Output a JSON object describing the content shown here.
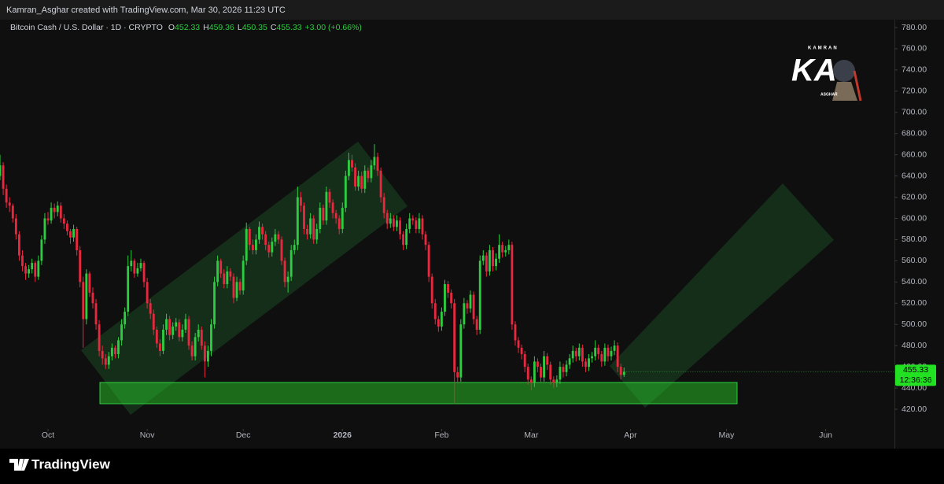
{
  "top_bar": "Kamran_Asghar created with TradingView.com, Mar 30, 2026 11:23 UTC",
  "footer_brand": "TradingView",
  "watermark": {
    "top": "KAMRAN",
    "mark": "KA",
    "bottom": "ASGHAR"
  },
  "chart_data": {
    "type": "candlestick",
    "title": "Bitcoin Cash / U.S. Dollar · 1D · CRYPTO",
    "ohlc_legend": [
      {
        "label": "O",
        "value": 452.33
      },
      {
        "label": "H",
        "value": 459.36
      },
      {
        "label": "L",
        "value": 450.35
      },
      {
        "label": "C",
        "value": 455.33
      }
    ],
    "change": "+3.00 (+0.66%)",
    "up_color": "#2ecc40",
    "down_color": "#e8283f",
    "grid": false,
    "xlim": [
      0,
      279
    ],
    "xticks": [
      {
        "value": 15,
        "label": "Oct"
      },
      {
        "value": 46,
        "label": "Nov"
      },
      {
        "value": 76,
        "label": "Dec"
      },
      {
        "value": 107,
        "label": "2026"
      },
      {
        "value": 138,
        "label": "Feb"
      },
      {
        "value": 166,
        "label": "Mar"
      },
      {
        "value": 197,
        "label": "Apr"
      },
      {
        "value": 227,
        "label": "May"
      },
      {
        "value": 258,
        "label": "Jun"
      }
    ],
    "ylim": [
      420,
      780
    ],
    "yticks": [
      {
        "value": 420,
        "label": "420.00"
      },
      {
        "value": 440,
        "label": "440.00"
      },
      {
        "value": 460,
        "label": "460.00"
      },
      {
        "value": 480,
        "label": "480.00"
      },
      {
        "value": 500,
        "label": "500.00"
      },
      {
        "value": 520,
        "label": "520.00"
      },
      {
        "value": 540,
        "label": "540.00"
      },
      {
        "value": 560,
        "label": "560.00"
      },
      {
        "value": 580,
        "label": "580.00"
      },
      {
        "value": 600,
        "label": "600.00"
      },
      {
        "value": 620,
        "label": "620.00"
      },
      {
        "value": 640,
        "label": "640.00"
      },
      {
        "value": 660,
        "label": "660.00"
      },
      {
        "value": 680,
        "label": "680.00"
      },
      {
        "value": 700,
        "label": "700.00"
      },
      {
        "value": 720,
        "label": "720.00"
      },
      {
        "value": 740,
        "label": "740.00"
      },
      {
        "value": 760,
        "label": "760.00"
      },
      {
        "value": 780,
        "label": "780.00"
      }
    ],
    "last_price": 455.33,
    "countdown": "12:36:36",
    "candles": [
      [
        640,
        660,
        636,
        650
      ],
      [
        650,
        653,
        622,
        628
      ],
      [
        628,
        632,
        610,
        615
      ],
      [
        615,
        620,
        606,
        612
      ],
      [
        612,
        614,
        596,
        600
      ],
      [
        600,
        604,
        580,
        585
      ],
      [
        585,
        588,
        560,
        565
      ],
      [
        565,
        570,
        550,
        555
      ],
      [
        555,
        558,
        542,
        548
      ],
      [
        548,
        556,
        544,
        552
      ],
      [
        552,
        562,
        548,
        558
      ],
      [
        558,
        560,
        540,
        545
      ],
      [
        545,
        565,
        542,
        560
      ],
      [
        560,
        584,
        556,
        580
      ],
      [
        580,
        605,
        576,
        600
      ],
      [
        600,
        606,
        594,
        598
      ],
      [
        598,
        615,
        595,
        610
      ],
      [
        610,
        614,
        600,
        606
      ],
      [
        606,
        616,
        602,
        612
      ],
      [
        612,
        615,
        596,
        600
      ],
      [
        600,
        604,
        590,
        595
      ],
      [
        595,
        598,
        584,
        588
      ],
      [
        588,
        590,
        576,
        582
      ],
      [
        582,
        594,
        578,
        590
      ],
      [
        590,
        592,
        565,
        570
      ],
      [
        570,
        574,
        535,
        540
      ],
      [
        540,
        545,
        478,
        505
      ],
      [
        505,
        552,
        500,
        548
      ],
      [
        548,
        550,
        526,
        530
      ],
      [
        530,
        535,
        515,
        520
      ],
      [
        520,
        524,
        495,
        500
      ],
      [
        500,
        504,
        470,
        475
      ],
      [
        475,
        480,
        462,
        468
      ],
      [
        468,
        472,
        458,
        462
      ],
      [
        462,
        474,
        458,
        470
      ],
      [
        470,
        482,
        466,
        478
      ],
      [
        478,
        480,
        468,
        472
      ],
      [
        472,
        488,
        468,
        485
      ],
      [
        485,
        505,
        480,
        500
      ],
      [
        500,
        516,
        496,
        512
      ],
      [
        512,
        565,
        508,
        555
      ],
      [
        555,
        570,
        550,
        560
      ],
      [
        560,
        562,
        544,
        548
      ],
      [
        548,
        558,
        545,
        553
      ],
      [
        553,
        562,
        550,
        558
      ],
      [
        558,
        560,
        535,
        540
      ],
      [
        540,
        544,
        515,
        520
      ],
      [
        520,
        524,
        505,
        510
      ],
      [
        510,
        514,
        490,
        495
      ],
      [
        495,
        498,
        478,
        482
      ],
      [
        482,
        486,
        470,
        475
      ],
      [
        475,
        500,
        472,
        495
      ],
      [
        495,
        510,
        490,
        505
      ],
      [
        505,
        508,
        485,
        490
      ],
      [
        490,
        502,
        486,
        498
      ],
      [
        498,
        506,
        494,
        502
      ],
      [
        502,
        505,
        484,
        488
      ],
      [
        488,
        500,
        484,
        495
      ],
      [
        495,
        510,
        492,
        505
      ],
      [
        505,
        508,
        476,
        480
      ],
      [
        480,
        484,
        466,
        470
      ],
      [
        470,
        492,
        466,
        488
      ],
      [
        488,
        500,
        484,
        495
      ],
      [
        495,
        498,
        476,
        480
      ],
      [
        480,
        484,
        450,
        465
      ],
      [
        465,
        480,
        460,
        475
      ],
      [
        475,
        505,
        470,
        500
      ],
      [
        500,
        545,
        496,
        540
      ],
      [
        540,
        565,
        536,
        560
      ],
      [
        560,
        562,
        544,
        548
      ],
      [
        548,
        552,
        534,
        538
      ],
      [
        538,
        555,
        534,
        550
      ],
      [
        550,
        553,
        541,
        545
      ],
      [
        545,
        548,
        520,
        525
      ],
      [
        525,
        545,
        522,
        540
      ],
      [
        540,
        543,
        528,
        532
      ],
      [
        532,
        565,
        528,
        560
      ],
      [
        560,
        596,
        556,
        590
      ],
      [
        590,
        592,
        570,
        575
      ],
      [
        575,
        580,
        566,
        570
      ],
      [
        570,
        585,
        566,
        580
      ],
      [
        580,
        597,
        576,
        592
      ],
      [
        592,
        595,
        580,
        585
      ],
      [
        585,
        588,
        570,
        575
      ],
      [
        575,
        578,
        563,
        568
      ],
      [
        568,
        582,
        564,
        578
      ],
      [
        578,
        590,
        574,
        585
      ],
      [
        585,
        588,
        576,
        580
      ],
      [
        580,
        583,
        556,
        560
      ],
      [
        560,
        563,
        535,
        540
      ],
      [
        540,
        550,
        530,
        545
      ],
      [
        545,
        575,
        541,
        570
      ],
      [
        570,
        580,
        566,
        575
      ],
      [
        575,
        630,
        570,
        620
      ],
      [
        620,
        625,
        606,
        612
      ],
      [
        612,
        615,
        585,
        590
      ],
      [
        590,
        594,
        580,
        585
      ],
      [
        585,
        605,
        581,
        600
      ],
      [
        600,
        603,
        576,
        580
      ],
      [
        580,
        595,
        576,
        590
      ],
      [
        590,
        615,
        586,
        610
      ],
      [
        610,
        613,
        594,
        598
      ],
      [
        598,
        630,
        594,
        625
      ],
      [
        625,
        628,
        610,
        615
      ],
      [
        615,
        618,
        600,
        605
      ],
      [
        605,
        608,
        595,
        600
      ],
      [
        600,
        603,
        585,
        590
      ],
      [
        590,
        615,
        586,
        610
      ],
      [
        610,
        645,
        606,
        640
      ],
      [
        640,
        662,
        636,
        655
      ],
      [
        655,
        660,
        644,
        648
      ],
      [
        648,
        652,
        626,
        630
      ],
      [
        630,
        645,
        626,
        640
      ],
      [
        640,
        644,
        624,
        628
      ],
      [
        628,
        650,
        624,
        645
      ],
      [
        645,
        648,
        634,
        638
      ],
      [
        638,
        655,
        634,
        650
      ],
      [
        650,
        670,
        646,
        658
      ],
      [
        658,
        662,
        640,
        645
      ],
      [
        645,
        648,
        615,
        620
      ],
      [
        620,
        624,
        600,
        605
      ],
      [
        605,
        608,
        590,
        595
      ],
      [
        595,
        605,
        591,
        600
      ],
      [
        600,
        603,
        588,
        592
      ],
      [
        592,
        603,
        588,
        598
      ],
      [
        598,
        601,
        580,
        585
      ],
      [
        585,
        588,
        570,
        575
      ],
      [
        575,
        595,
        571,
        590
      ],
      [
        590,
        605,
        586,
        600
      ],
      [
        600,
        603,
        594,
        598
      ],
      [
        598,
        601,
        586,
        590
      ],
      [
        590,
        605,
        586,
        600
      ],
      [
        600,
        603,
        580,
        585
      ],
      [
        585,
        588,
        570,
        575
      ],
      [
        575,
        578,
        540,
        545
      ],
      [
        545,
        548,
        515,
        520
      ],
      [
        520,
        524,
        500,
        505
      ],
      [
        505,
        508,
        493,
        498
      ],
      [
        498,
        516,
        494,
        512
      ],
      [
        512,
        542,
        508,
        538
      ],
      [
        538,
        541,
        525,
        530
      ],
      [
        530,
        533,
        515,
        520
      ],
      [
        520,
        524,
        425,
        455
      ],
      [
        455,
        460,
        445,
        450
      ],
      [
        450,
        505,
        446,
        500
      ],
      [
        500,
        525,
        496,
        520
      ],
      [
        520,
        523,
        510,
        515
      ],
      [
        515,
        532,
        511,
        528
      ],
      [
        528,
        531,
        500,
        505
      ],
      [
        505,
        508,
        490,
        495
      ],
      [
        495,
        565,
        491,
        560
      ],
      [
        560,
        570,
        556,
        565
      ],
      [
        565,
        568,
        545,
        550
      ],
      [
        550,
        575,
        546,
        570
      ],
      [
        570,
        573,
        550,
        555
      ],
      [
        555,
        567,
        551,
        562
      ],
      [
        562,
        585,
        558,
        575
      ],
      [
        575,
        578,
        563,
        568
      ],
      [
        568,
        574,
        564,
        570
      ],
      [
        570,
        580,
        566,
        575
      ],
      [
        575,
        578,
        495,
        500
      ],
      [
        500,
        503,
        480,
        485
      ],
      [
        485,
        488,
        473,
        478
      ],
      [
        478,
        481,
        467,
        472
      ],
      [
        472,
        475,
        455,
        460
      ],
      [
        460,
        463,
        443,
        448
      ],
      [
        448,
        451,
        438,
        445
      ],
      [
        445,
        470,
        441,
        465
      ],
      [
        465,
        468,
        455,
        460
      ],
      [
        460,
        463,
        445,
        450
      ],
      [
        450,
        475,
        446,
        470
      ],
      [
        470,
        473,
        457,
        462
      ],
      [
        462,
        465,
        443,
        448
      ],
      [
        448,
        451,
        440,
        445
      ],
      [
        445,
        452,
        441,
        448
      ],
      [
        448,
        465,
        444,
        460
      ],
      [
        460,
        463,
        450,
        455
      ],
      [
        455,
        466,
        451,
        462
      ],
      [
        462,
        472,
        458,
        468
      ],
      [
        468,
        480,
        464,
        475
      ],
      [
        475,
        478,
        465,
        470
      ],
      [
        470,
        482,
        466,
        478
      ],
      [
        478,
        481,
        460,
        465
      ],
      [
        465,
        468,
        455,
        460
      ],
      [
        460,
        472,
        456,
        468
      ],
      [
        468,
        474,
        464,
        470
      ],
      [
        470,
        485,
        466,
        478
      ],
      [
        478,
        481,
        467,
        472
      ],
      [
        472,
        475,
        460,
        465
      ],
      [
        465,
        482,
        461,
        478
      ],
      [
        478,
        481,
        465,
        470
      ],
      [
        470,
        479,
        466,
        475
      ],
      [
        475,
        485,
        471,
        480
      ],
      [
        480,
        483,
        455,
        460
      ],
      [
        460,
        463,
        448,
        452.33
      ],
      [
        452.33,
        459.36,
        450.35,
        455.33
      ]
    ]
  }
}
